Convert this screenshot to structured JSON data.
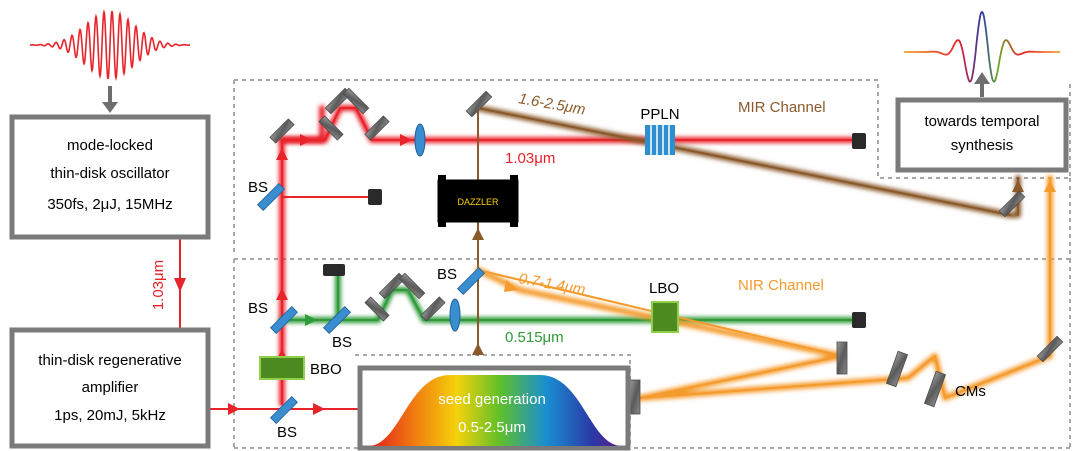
{
  "blocks": {
    "oscillator": {
      "line1": "mode-locked",
      "line2": "thin-disk oscillator",
      "line3": "350fs, 2μJ, 15MHz"
    },
    "amplifier": {
      "line1": "thin-disk regenerative",
      "line2": "amplifier",
      "line3": "1ps, 20mJ, 5kHz"
    },
    "synthesis": {
      "line1": "towards temporal",
      "line2": "synthesis"
    },
    "seed": {
      "line1": "seed generation",
      "line2": "0.5-2.5μm"
    }
  },
  "channels": {
    "mir": "MIR Channel",
    "nir": "NIR Channel"
  },
  "wavelengths": {
    "pump": "1.03μm",
    "pump_vertical": "1.03μm",
    "mir": "1.6-2.5μm",
    "nir": "0.7-1.4μm",
    "green": "0.515μm"
  },
  "components": {
    "ppln": "PPLN",
    "lbo": "LBO",
    "bbo": "BBO",
    "dazzler": "DAZZLER",
    "bs_upper": "BS",
    "bs_mid": "BS",
    "bs_green": "BS",
    "bs_nir": "BS",
    "bs_bottom": "BS",
    "cms": "CMs"
  },
  "colors": {
    "pump": "#e8232a",
    "mir": "#8b5a2b",
    "nir": "#f59a2c",
    "green": "#2e9a3a",
    "box_border": "#7a7a7a",
    "arrow": "#6e6e6e",
    "crystal_ppln": "#2e8fd0",
    "crystal_lbo": "#6aaa2a",
    "splitter": "#3a8ed0"
  }
}
